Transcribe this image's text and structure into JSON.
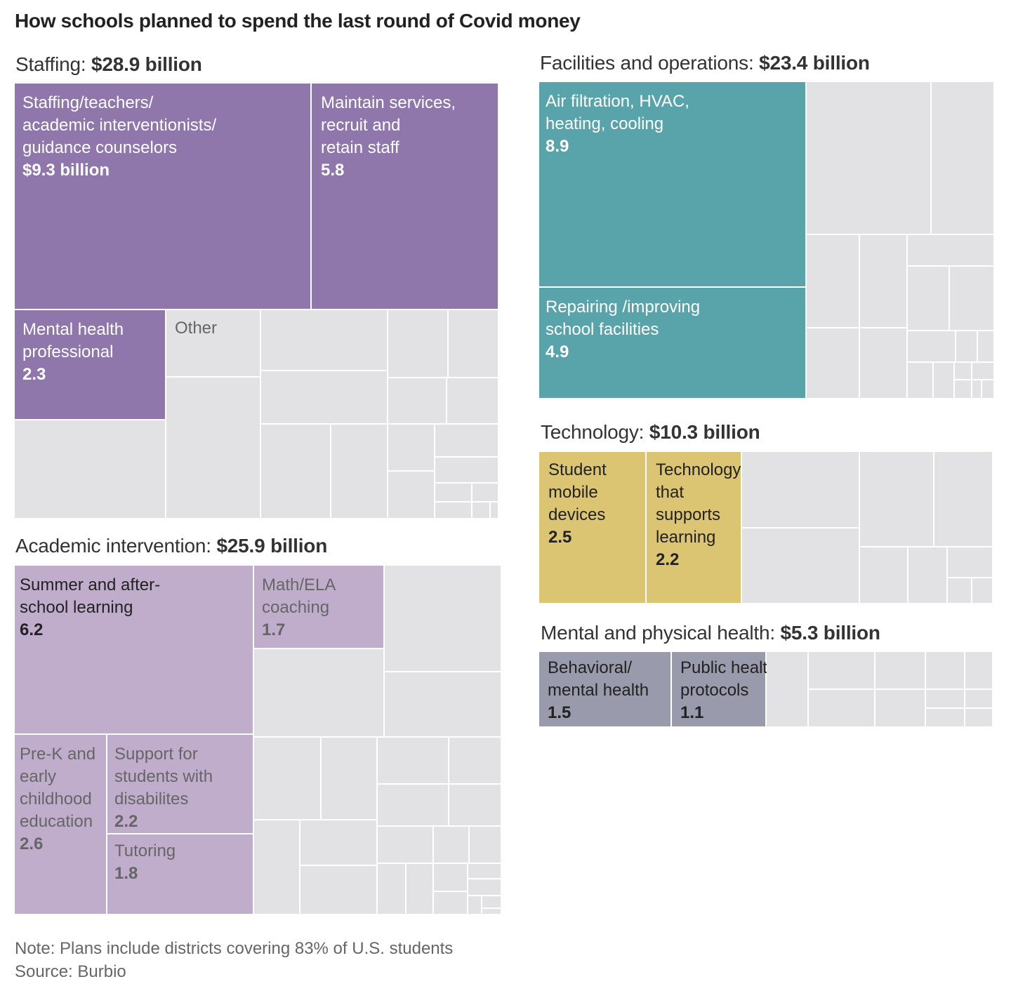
{
  "title": "How schools planned to spend the last round of Covid money",
  "colors": {
    "staffing": "#8f76ab",
    "facilities": "#58a4aa",
    "technology": "#dcc572",
    "academic": "#bfadcb",
    "health": "#999aac",
    "other": "#e2e2e4",
    "text_light": "#ffffff",
    "text_dark": "#222222",
    "text_other": "#666666"
  },
  "chart_data": [
    {
      "type": "treemap",
      "category": "Staffing",
      "total_label": "$28.9 billion",
      "total": 28.9,
      "units": "billion dollars",
      "items": [
        {
          "name": "Staffing/teachers/ academic interventionists/ guidance counselors",
          "value": 9.3,
          "value_label": "$9.3 billion"
        },
        {
          "name": "Maintain services, recruit and retain staff",
          "value": 5.8,
          "value_label": "5.8"
        },
        {
          "name": "Mental health professional",
          "value": 2.3,
          "value_label": "2.3"
        },
        {
          "name": "Other",
          "value": 11.5
        }
      ]
    },
    {
      "type": "treemap",
      "category": "Facilities and operations",
      "total_label": "$23.4 billion",
      "total": 23.4,
      "units": "billion dollars",
      "items": [
        {
          "name": "Air filtration, HVAC, heating, cooling",
          "value": 8.9,
          "value_label": "8.9"
        },
        {
          "name": "Repairing /improving school facilities",
          "value": 4.9,
          "value_label": "4.9"
        }
      ]
    },
    {
      "type": "treemap",
      "category": "Academic intervention",
      "total_label": "$25.9 billion",
      "total": 25.9,
      "units": "billion dollars",
      "items": [
        {
          "name": "Summer and after-school learning",
          "value": 6.2,
          "value_label": "6.2"
        },
        {
          "name": "Math/ELA coaching",
          "value": 1.7,
          "value_label": "1.7"
        },
        {
          "name": "Pre-K and early childhood education",
          "value": 2.6,
          "value_label": "2.6"
        },
        {
          "name": "Support for students with disabilites",
          "value": 2.2,
          "value_label": "2.2"
        },
        {
          "name": "Tutoring",
          "value": 1.8,
          "value_label": "1.8"
        }
      ]
    },
    {
      "type": "treemap",
      "category": "Technology",
      "total_label": "$10.3 billion",
      "total": 10.3,
      "units": "billion dollars",
      "items": [
        {
          "name": "Student mobile devices",
          "value": 2.5,
          "value_label": "2.5"
        },
        {
          "name": "Technology that supports learning",
          "value": 2.2,
          "value_label": "2.2"
        }
      ]
    },
    {
      "type": "treemap",
      "category": "Mental and physical health",
      "total_label": "$5.3 billion",
      "total": 5.3,
      "units": "billion dollars",
      "items": [
        {
          "name": "Behavioral/ mental health",
          "value": 1.5,
          "value_label": "1.5"
        },
        {
          "name": "Public health protocols",
          "value": 1.1,
          "value_label": "1.1"
        }
      ]
    }
  ],
  "labels": {
    "staffing": {
      "s0": [
        "Staffing/teachers/",
        "academic interventionists/",
        "guidance counselors"
      ],
      "s1": [
        "Maintain services,",
        "recruit and",
        "retain staff"
      ],
      "s2": [
        "Mental health",
        "professional"
      ],
      "other": [
        "Other"
      ]
    },
    "facilities": {
      "f0": [
        "Air filtration, HVAC,",
        "heating, cooling"
      ],
      "f1": [
        "Repairing /improving",
        "school facilities"
      ]
    },
    "academic": {
      "a0": [
        "Summer and after-",
        "school learning"
      ],
      "a1": [
        "Math/ELA",
        "coaching"
      ],
      "a2": [
        "Pre-K and",
        "early",
        "childhood",
        "education"
      ],
      "a3": [
        "Support for",
        "students with",
        "disabilites"
      ],
      "a4": [
        "Tutoring"
      ]
    },
    "technology": {
      "t0": [
        "Student",
        "mobile",
        "devices"
      ],
      "t1": [
        "Technology",
        "that",
        "supports",
        "learning"
      ]
    },
    "health": {
      "h0": [
        "Behavioral/",
        "mental health"
      ],
      "h1": [
        "Public health",
        "protocols"
      ]
    }
  },
  "footer": {
    "note": "Note: Plans include districts covering 83% of U.S. students",
    "source": "Source: Burbio"
  }
}
